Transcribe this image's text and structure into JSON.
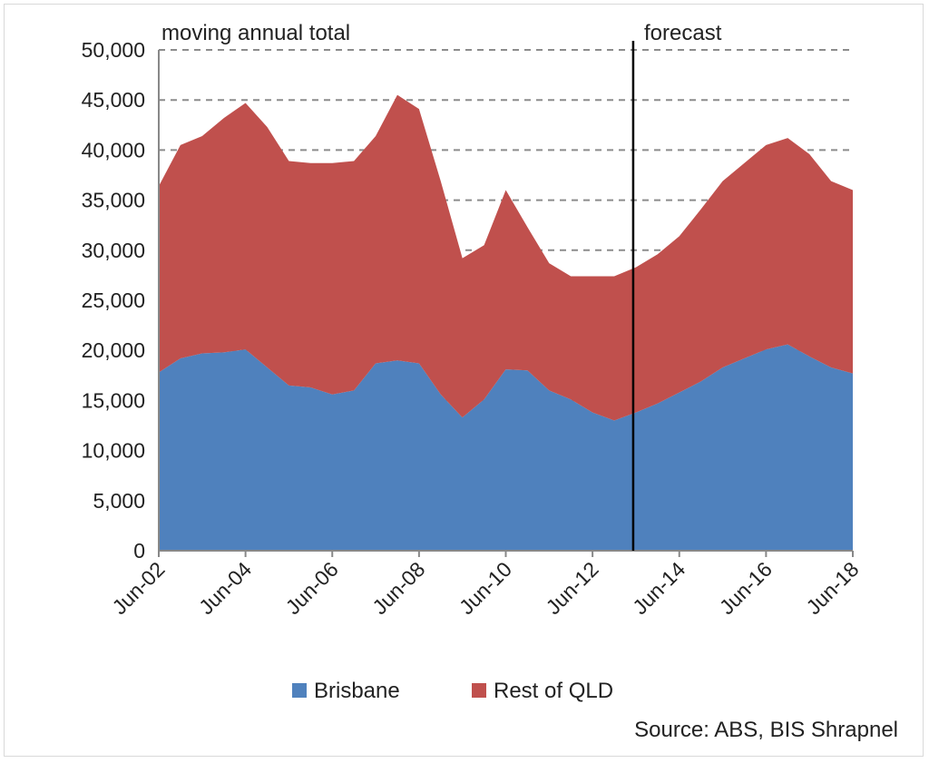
{
  "chart_data": {
    "type": "area",
    "stacked": true,
    "title": "",
    "xlabel": "",
    "ylabel": "",
    "ylim": [
      0,
      50000
    ],
    "yticks": [
      0,
      5000,
      10000,
      15000,
      20000,
      25000,
      30000,
      35000,
      40000,
      45000,
      50000
    ],
    "ytick_labels": [
      "0",
      "5,000",
      "10,000",
      "15,000",
      "20,000",
      "25,000",
      "30,000",
      "35,000",
      "40,000",
      "45,000",
      "50,000"
    ],
    "xtick_labels": [
      "Jun-02",
      "Jun-04",
      "Jun-06",
      "Jun-08",
      "Jun-10",
      "Jun-12",
      "Jun-14",
      "Jun-16",
      "Jun-18"
    ],
    "x": [
      "Jun-02",
      "Dec-02",
      "Jun-03",
      "Dec-03",
      "Jun-04",
      "Dec-04",
      "Jun-05",
      "Dec-05",
      "Jun-06",
      "Dec-06",
      "Jun-07",
      "Dec-07",
      "Jun-08",
      "Dec-08",
      "Jun-09",
      "Dec-09",
      "Jun-10",
      "Dec-10",
      "Jun-11",
      "Dec-11",
      "Jun-12",
      "Dec-12",
      "Jun-13",
      "Dec-13",
      "Jun-14",
      "Dec-14",
      "Jun-15",
      "Dec-15",
      "Jun-16",
      "Dec-16",
      "Jun-17",
      "Dec-17",
      "Jun-18"
    ],
    "series": [
      {
        "name": "Brisbane",
        "color": "#4f81bd",
        "values": [
          17800,
          19200,
          19700,
          19800,
          20100,
          18300,
          16500,
          16300,
          15600,
          16000,
          18700,
          19000,
          18700,
          15600,
          13300,
          15100,
          18100,
          18000,
          16000,
          15100,
          13800,
          13000,
          13800,
          14700,
          15800,
          16900,
          18300,
          19200,
          20100,
          20600,
          19400,
          18300,
          17700
        ]
      },
      {
        "name": "Rest of QLD",
        "color": "#c0504d",
        "values": [
          18600,
          21300,
          21700,
          23400,
          24600,
          24000,
          22400,
          22400,
          23100,
          22900,
          22700,
          26500,
          25400,
          21300,
          15900,
          15400,
          17900,
          14300,
          12700,
          12300,
          13600,
          14400,
          14500,
          14900,
          15600,
          17200,
          18600,
          19500,
          20400,
          20600,
          20200,
          18600,
          18300
        ]
      }
    ],
    "grid": "horizontal dashed",
    "legend": "bottom",
    "annotations": {
      "left_label": "moving annual total",
      "right_label": "forecast",
      "divider_at": "Jun-13",
      "source": "Source: ABS, BIS Shrapnel"
    }
  }
}
